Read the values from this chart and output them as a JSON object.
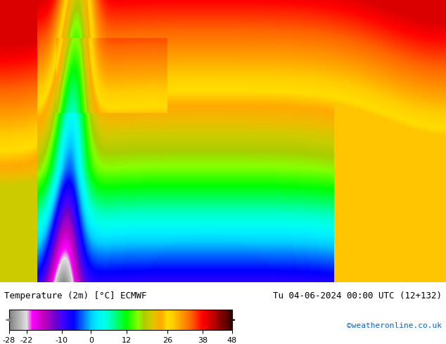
{
  "title_left": "Temperature (2m) [°C] ECMWF",
  "title_right": "Tu 04-06-2024 00:00 UTC (12+132)",
  "credit": "©weatheronline.co.uk",
  "colorbar_ticks": [
    -28,
    -22,
    -10,
    0,
    12,
    26,
    38,
    48
  ],
  "colorbar_colors": [
    "#7f7f7f",
    "#b0b0b0",
    "#d0d0d0",
    "#ffffff",
    "#ff00ff",
    "#cc00cc",
    "#9900cc",
    "#6600cc",
    "#3300ff",
    "#0000ff",
    "#0033ff",
    "#0066ff",
    "#0099ff",
    "#00ccff",
    "#00ffff",
    "#00ffcc",
    "#00ff99",
    "#00ff66",
    "#00ff33",
    "#00ff00",
    "#33ff00",
    "#66ff00",
    "#99cc00",
    "#cccc00",
    "#ffff00",
    "#ffcc00",
    "#ff9900",
    "#ff6600",
    "#ff3300",
    "#ff0000",
    "#cc0000",
    "#990000",
    "#660000",
    "#330000"
  ],
  "vmin": -28,
  "vmax": 48,
  "bg_color": "#ffffff",
  "map_bg_color": "#ff4400",
  "fig_width": 6.34,
  "fig_height": 4.9,
  "dpi": 100
}
